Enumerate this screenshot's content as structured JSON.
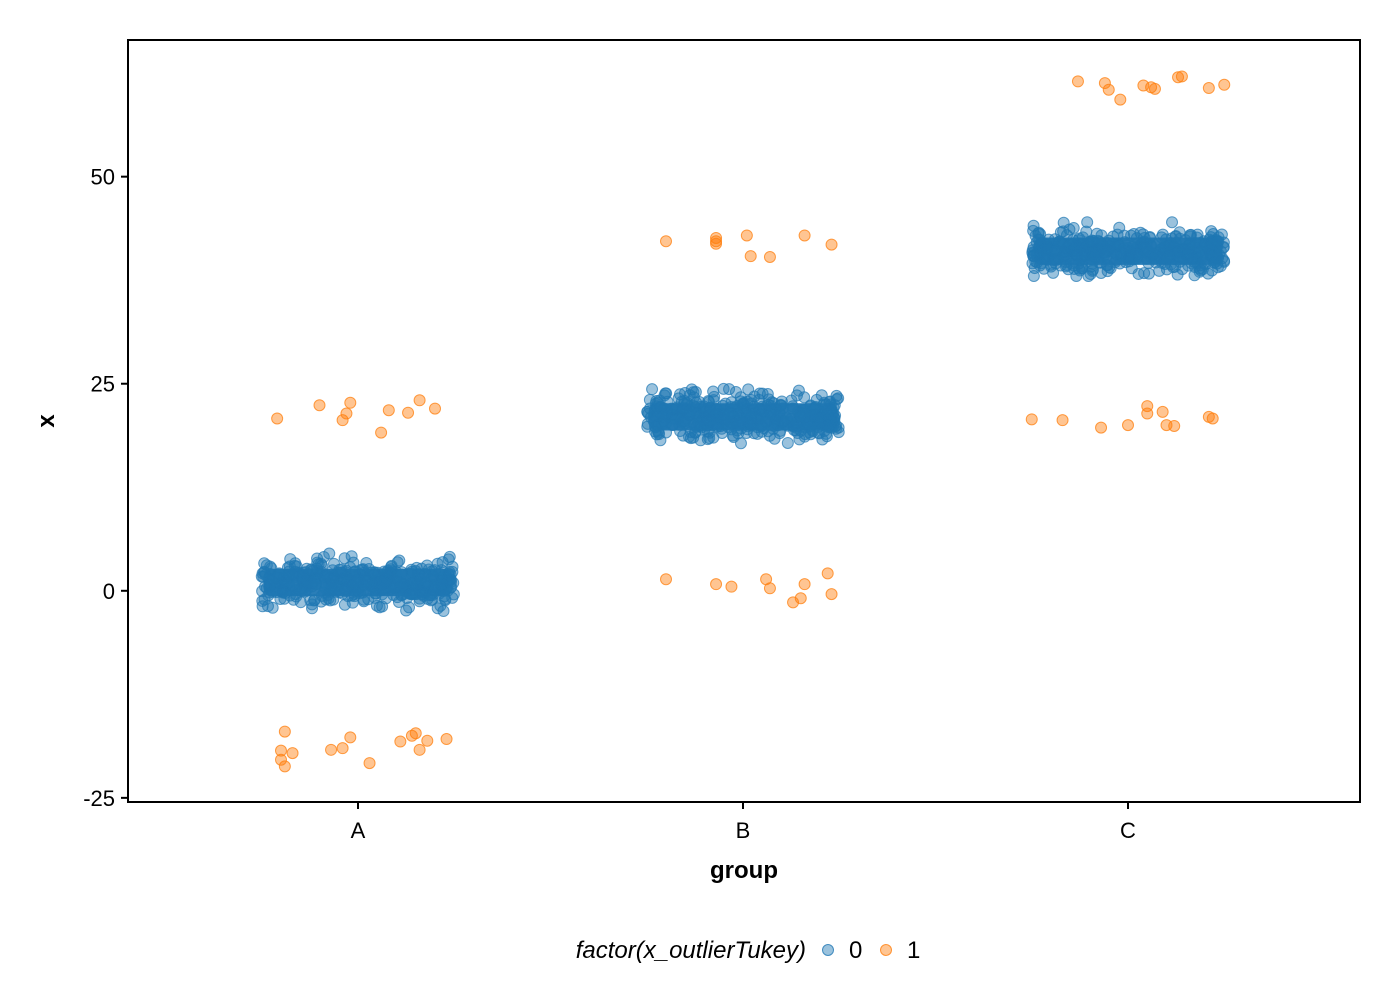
{
  "chart_data": {
    "type": "scatter",
    "title": "",
    "xlabel": "group",
    "ylabel": "x",
    "categories": [
      "A",
      "B",
      "C"
    ],
    "ylim": [
      -25.5,
      66.5
    ],
    "yticks": [
      -25,
      0,
      25,
      50
    ],
    "grid": false,
    "legend": {
      "placement": "bottom",
      "title": "factor(x_outlierTukey)",
      "entries": [
        {
          "label": "0",
          "color": "#1f77b4"
        },
        {
          "label": "1",
          "color": "#ff7f0e"
        }
      ]
    },
    "series": [
      {
        "name": "0",
        "color": "#1f77b4",
        "note_jitter_bands": [
          {
            "category": "A",
            "center": 1.0,
            "spread": 3.0,
            "min": -2.5,
            "max": 4.5
          },
          {
            "category": "B",
            "center": 21.0,
            "spread": 3.0,
            "min": 17.5,
            "max": 24.5
          },
          {
            "category": "C",
            "center": 41.0,
            "spread": 3.0,
            "min": 38.0,
            "max": 44.5
          }
        ]
      },
      {
        "name": "1",
        "color": "#ff7f0e",
        "points": [
          {
            "category": "A",
            "offset": -0.21,
            "y": 20.8
          },
          {
            "category": "A",
            "offset": -0.1,
            "y": 22.4
          },
          {
            "category": "A",
            "offset": -0.04,
            "y": 20.6
          },
          {
            "category": "A",
            "offset": -0.03,
            "y": 21.4
          },
          {
            "category": "A",
            "offset": -0.02,
            "y": 22.7
          },
          {
            "category": "A",
            "offset": 0.06,
            "y": 19.1
          },
          {
            "category": "A",
            "offset": 0.08,
            "y": 21.8
          },
          {
            "category": "A",
            "offset": 0.13,
            "y": 21.5
          },
          {
            "category": "A",
            "offset": 0.16,
            "y": 23.0
          },
          {
            "category": "A",
            "offset": 0.2,
            "y": 22.0
          },
          {
            "category": "A",
            "offset": -0.19,
            "y": -17.0
          },
          {
            "category": "A",
            "offset": -0.2,
            "y": -19.3
          },
          {
            "category": "A",
            "offset": -0.2,
            "y": -20.4
          },
          {
            "category": "A",
            "offset": -0.19,
            "y": -21.2
          },
          {
            "category": "A",
            "offset": -0.17,
            "y": -19.6
          },
          {
            "category": "A",
            "offset": -0.07,
            "y": -19.2
          },
          {
            "category": "A",
            "offset": -0.04,
            "y": -19.0
          },
          {
            "category": "A",
            "offset": -0.02,
            "y": -17.7
          },
          {
            "category": "A",
            "offset": 0.03,
            "y": -20.8
          },
          {
            "category": "A",
            "offset": 0.11,
            "y": -18.2
          },
          {
            "category": "A",
            "offset": 0.14,
            "y": -17.5
          },
          {
            "category": "A",
            "offset": 0.15,
            "y": -17.2
          },
          {
            "category": "A",
            "offset": 0.16,
            "y": -19.2
          },
          {
            "category": "A",
            "offset": 0.18,
            "y": -18.1
          },
          {
            "category": "A",
            "offset": 0.23,
            "y": -17.9
          },
          {
            "category": "B",
            "offset": -0.2,
            "y": 42.2
          },
          {
            "category": "B",
            "offset": -0.07,
            "y": 42.2
          },
          {
            "category": "B",
            "offset": -0.07,
            "y": 41.9
          },
          {
            "category": "B",
            "offset": -0.07,
            "y": 42.6
          },
          {
            "category": "B",
            "offset": 0.01,
            "y": 42.9
          },
          {
            "category": "B",
            "offset": 0.02,
            "y": 40.4
          },
          {
            "category": "B",
            "offset": 0.07,
            "y": 40.3
          },
          {
            "category": "B",
            "offset": 0.16,
            "y": 42.9
          },
          {
            "category": "B",
            "offset": 0.23,
            "y": 41.8
          },
          {
            "category": "B",
            "offset": -0.2,
            "y": 1.4
          },
          {
            "category": "B",
            "offset": -0.07,
            "y": 0.8
          },
          {
            "category": "B",
            "offset": -0.03,
            "y": 0.5
          },
          {
            "category": "B",
            "offset": 0.06,
            "y": 1.4
          },
          {
            "category": "B",
            "offset": 0.07,
            "y": 0.3
          },
          {
            "category": "B",
            "offset": 0.13,
            "y": -1.4
          },
          {
            "category": "B",
            "offset": 0.15,
            "y": -0.9
          },
          {
            "category": "B",
            "offset": 0.16,
            "y": 0.8
          },
          {
            "category": "B",
            "offset": 0.22,
            "y": 2.1
          },
          {
            "category": "B",
            "offset": 0.23,
            "y": -0.4
          },
          {
            "category": "C",
            "offset": -0.13,
            "y": 61.5
          },
          {
            "category": "C",
            "offset": -0.06,
            "y": 61.3
          },
          {
            "category": "C",
            "offset": -0.05,
            "y": 60.5
          },
          {
            "category": "C",
            "offset": -0.02,
            "y": 59.3
          },
          {
            "category": "C",
            "offset": 0.04,
            "y": 61.0
          },
          {
            "category": "C",
            "offset": 0.06,
            "y": 60.8
          },
          {
            "category": "C",
            "offset": 0.07,
            "y": 60.6
          },
          {
            "category": "C",
            "offset": 0.13,
            "y": 62.0
          },
          {
            "category": "C",
            "offset": 0.14,
            "y": 62.1
          },
          {
            "category": "C",
            "offset": 0.21,
            "y": 60.7
          },
          {
            "category": "C",
            "offset": 0.25,
            "y": 61.1
          },
          {
            "category": "C",
            "offset": -0.25,
            "y": 20.7
          },
          {
            "category": "C",
            "offset": -0.17,
            "y": 20.6
          },
          {
            "category": "C",
            "offset": -0.07,
            "y": 19.7
          },
          {
            "category": "C",
            "offset": 0.0,
            "y": 20.0
          },
          {
            "category": "C",
            "offset": 0.05,
            "y": 22.3
          },
          {
            "category": "C",
            "offset": 0.05,
            "y": 21.4
          },
          {
            "category": "C",
            "offset": 0.09,
            "y": 21.6
          },
          {
            "category": "C",
            "offset": 0.1,
            "y": 20.0
          },
          {
            "category": "C",
            "offset": 0.12,
            "y": 19.9
          },
          {
            "category": "C",
            "offset": 0.21,
            "y": 21.0
          },
          {
            "category": "C",
            "offset": 0.22,
            "y": 20.8
          }
        ]
      }
    ]
  }
}
